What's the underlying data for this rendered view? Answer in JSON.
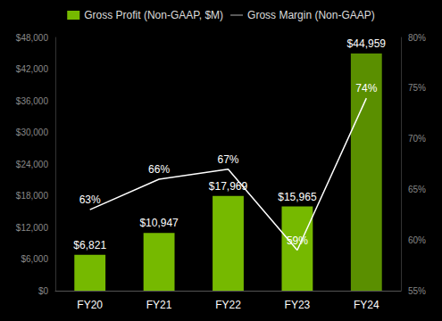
{
  "chart_data": {
    "type": "bar",
    "categories": [
      "FY20",
      "FY21",
      "FY22",
      "FY23",
      "FY24"
    ],
    "series": [
      {
        "name": "Gross Profit (Non-GAAP, $M)",
        "type": "bar",
        "colors": [
          "#76b900",
          "#76b900",
          "#76b900",
          "#76b900",
          "#5a8f00"
        ],
        "values": [
          6821,
          10947,
          17969,
          15965,
          44959
        ],
        "value_labels": [
          "$6,821",
          "$10,947",
          "$17,969",
          "$15,965",
          "$44,959"
        ]
      },
      {
        "name": "Gross Margin (Non-GAAP)",
        "type": "line",
        "axis": "y2",
        "color": "#ffffff",
        "values": [
          63,
          66,
          67,
          59,
          74
        ],
        "value_labels": [
          "63%",
          "66%",
          "67%",
          "59%",
          "74%"
        ]
      }
    ],
    "ylim": [
      0,
      48000
    ],
    "yticks": [
      {
        "value": 0,
        "label": "$0"
      },
      {
        "value": 6000,
        "label": "$6,000"
      },
      {
        "value": 12000,
        "label": "$12,000"
      },
      {
        "value": 18000,
        "label": "$18,000"
      },
      {
        "value": 24000,
        "label": "$24,000"
      },
      {
        "value": 30000,
        "label": "$30,000"
      },
      {
        "value": 36000,
        "label": "$36,000"
      },
      {
        "value": 42000,
        "label": "$42,000"
      },
      {
        "value": 48000,
        "label": "$48,000"
      }
    ],
    "y2lim": [
      55,
      80
    ],
    "y2ticks": [
      {
        "value": 55,
        "label": "55%"
      },
      {
        "value": 60,
        "label": "60%"
      },
      {
        "value": 65,
        "label": "65%"
      },
      {
        "value": 70,
        "label": "70%"
      },
      {
        "value": 75,
        "label": "75%"
      },
      {
        "value": 80,
        "label": "80%"
      }
    ],
    "data_labels": true,
    "legend": "top",
    "grid": false
  }
}
